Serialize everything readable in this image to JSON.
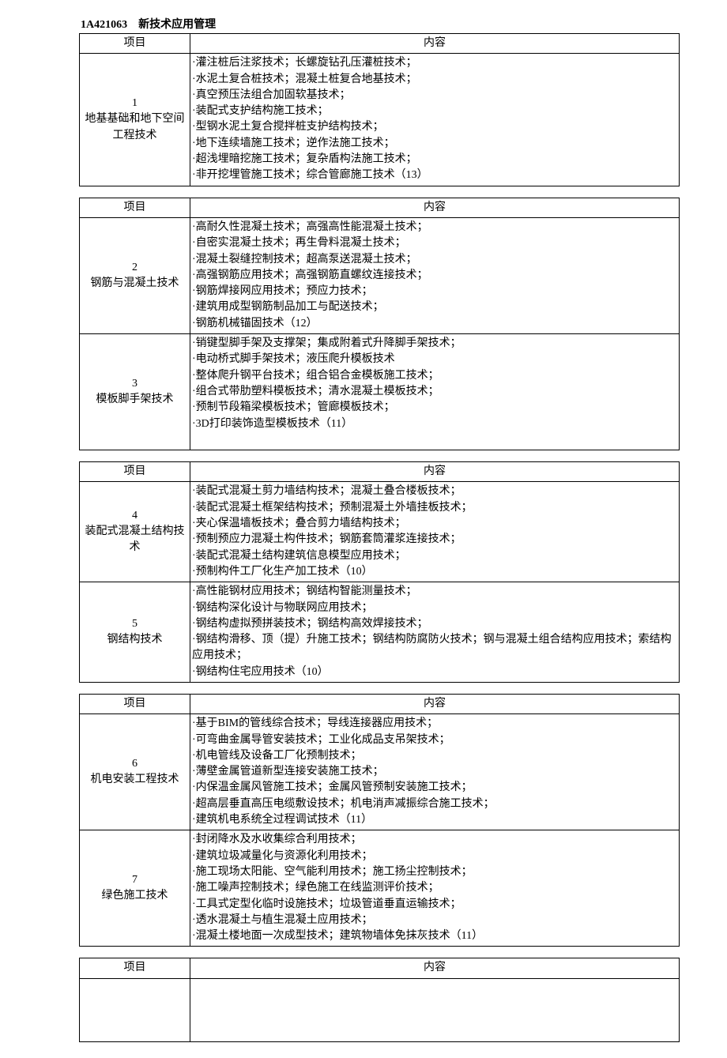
{
  "section_title": "1A421063　新技术应用管理",
  "headers": {
    "project": "项目",
    "content": "内容"
  },
  "tables": [
    {
      "rows": [
        {
          "num": "1",
          "name": "地基基础和地下空间工程技术",
          "lines": [
            "·灌注桩后注浆技术；长螺旋钻孔压灌桩技术；",
            "·水泥土复合桩技术；混凝土桩复合地基技术；",
            "·真空预压法组合加固软基技术；",
            "·装配式支护结构施工技术；",
            "·型钢水泥土复合搅拌桩支护结构技术；",
            "·地下连续墙施工技术；逆作法施工技术；",
            "·超浅埋暗挖施工技术；复杂盾构法施工技术；",
            "·非开挖埋管施工技术；综合管廊施工技术（13）"
          ]
        }
      ]
    },
    {
      "rows": [
        {
          "num": "2",
          "name": "钢筋与混凝土技术",
          "lines": [
            "·高耐久性混凝土技术；高强高性能混凝土技术；",
            "·自密实混凝土技术；再生骨料混凝土技术；",
            "·混凝土裂缝控制技术；超高泵送混凝土技术；",
            "·高强钢筋应用技术；高强钢筋直螺纹连接技术；",
            "·钢筋焊接网应用技术；预应力技术；",
            "·建筑用成型钢筋制品加工与配送技术；",
            "·钢筋机械锚固技术（12）"
          ]
        },
        {
          "num": "3",
          "name": "模板脚手架技术",
          "lines": [
            "·销键型脚手架及支撑架；集成附着式升降脚手架技术；",
            "·电动桥式脚手架技术；液压爬升模板技术",
            "·整体爬升钢平台技术；组合铝合金模板施工技术；",
            "·组合式带肋塑料模板技术；清水混凝土模板技术；",
            "·预制节段箱梁模板技术；管廊模板技术；",
            "·3D打印装饰造型模板技术（11）",
            ""
          ]
        }
      ]
    },
    {
      "rows": [
        {
          "num": "4",
          "name": "装配式混凝土结构技术",
          "lines": [
            "·装配式混凝土剪力墙结构技术；混凝土叠合楼板技术；",
            "·装配式混凝土框架结构技术；预制混凝土外墙挂板技术；",
            "·夹心保温墙板技术；叠合剪力墙结构技术；",
            "·预制预应力混凝土构件技术；钢筋套筒灌浆连接技术；",
            "·装配式混凝土结构建筑信息模型应用技术；",
            "·预制构件工厂化生产加工技术（10）"
          ]
        },
        {
          "num": "5",
          "name": "钢结构技术",
          "lines": [
            "·高性能钢材应用技术；钢结构智能测量技术；",
            "·钢结构深化设计与物联网应用技术；",
            "·钢结构虚拟预拼装技术；钢结构高效焊接技术；",
            "·钢结构滑移、顶（提）升施工技术；钢结构防腐防火技术；钢与混凝土组合结构应用技术；索结构应用技术；",
            "·钢结构住宅应用技术（10）"
          ]
        }
      ]
    },
    {
      "rows": [
        {
          "num": "6",
          "name": "机电安装工程技术",
          "lines": [
            "·基于BIM的管线综合技术；导线连接器应用技术；",
            "·可弯曲金属导管安装技术；工业化成品支吊架技术；",
            "·机电管线及设备工厂化预制技术；",
            "·薄壁金属管道新型连接安装施工技术；",
            "·内保温金属风管施工技术；金属风管预制安装施工技术；",
            "·超高层垂直高压电缆敷设技术；机电消声减振综合施工技术；",
            "·建筑机电系统全过程调试技术（11）"
          ]
        },
        {
          "num": "7",
          "name": "绿色施工技术",
          "lines": [
            "·封闭降水及水收集综合利用技术；",
            "·建筑垃圾减量化与资源化利用技术；",
            "·施工现场太阳能、空气能利用技术；施工扬尘控制技术；",
            "·施工噪声控制技术；绿色施工在线监测评价技术；",
            "·工具式定型化临时设施技术；垃圾管道垂直运输技术；",
            "·透水混凝土与植生混凝土应用技术；",
            "·混凝土楼地面一次成型技术；建筑物墙体免抹灰技术（11）"
          ]
        }
      ]
    },
    {
      "rows": [
        {
          "num": "",
          "name": "",
          "lines": [],
          "empty": true
        }
      ]
    }
  ]
}
